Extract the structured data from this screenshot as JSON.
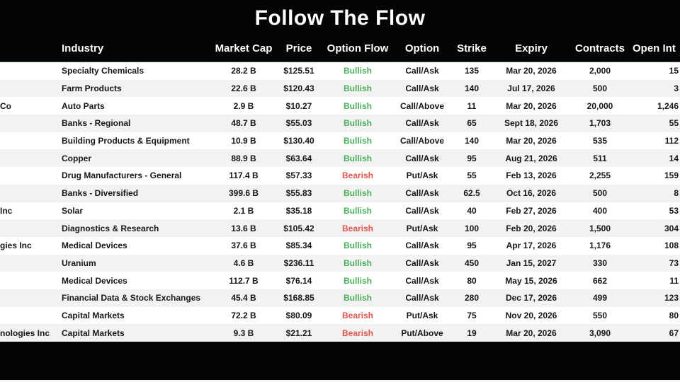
{
  "title": "Follow The Flow",
  "colors": {
    "background": "#050505",
    "header_text": "#ffffff",
    "body_text": "#161616",
    "row_white": "#ffffff",
    "row_gray": "#f2f2f2",
    "bullish_green": "#4aad5b",
    "bearish_red": "#e4544b",
    "divider_green": "#3f5a3f",
    "bottom_strip": "#f5f5f5"
  },
  "table": {
    "columns": [
      "Industry",
      "Market Cap",
      "Price",
      "Option Flow",
      "Option",
      "Strike",
      "Expiry",
      "Contracts",
      "Open Int"
    ],
    "rows": [
      {
        "company_fragment": "",
        "industry": "Specialty Chemicals",
        "market_cap": "28.2 B",
        "price": "$125.51",
        "option_flow": "Bullish",
        "option": "Call/Ask",
        "strike": "135",
        "expiry": "Mar 20, 2026",
        "contracts": "2,000",
        "open_int": "15"
      },
      {
        "company_fragment": "",
        "industry": "Farm Products",
        "market_cap": "22.6 B",
        "price": "$120.43",
        "option_flow": "Bullish",
        "option": "Call/Ask",
        "strike": "140",
        "expiry": "Jul 17, 2026",
        "contracts": "500",
        "open_int": "3"
      },
      {
        "company_fragment": "Co",
        "industry": "Auto Parts",
        "market_cap": "2.9 B",
        "price": "$10.27",
        "option_flow": "Bullish",
        "option": "Call/Above",
        "strike": "11",
        "expiry": "Mar 20, 2026",
        "contracts": "20,000",
        "open_int": "1,246"
      },
      {
        "company_fragment": "",
        "industry": "Banks - Regional",
        "market_cap": "48.7 B",
        "price": "$55.03",
        "option_flow": "Bullish",
        "option": "Call/Ask",
        "strike": "65",
        "expiry": "Sept 18, 2026",
        "contracts": "1,703",
        "open_int": "55"
      },
      {
        "company_fragment": "",
        "industry": "Building Products & Equipment",
        "market_cap": "10.9 B",
        "price": "$130.40",
        "option_flow": "Bullish",
        "option": "Call/Above",
        "strike": "140",
        "expiry": "Mar 20, 2026",
        "contracts": "535",
        "open_int": "112"
      },
      {
        "company_fragment": "",
        "industry": "Copper",
        "market_cap": "88.9 B",
        "price": "$63.64",
        "option_flow": "Bullish",
        "option": "Call/Ask",
        "strike": "95",
        "expiry": "Aug 21, 2026",
        "contracts": "511",
        "open_int": "14"
      },
      {
        "company_fragment": "",
        "industry": "Drug Manufacturers - General",
        "market_cap": "117.4 B",
        "price": "$57.33",
        "option_flow": "Bearish",
        "option": "Put/Ask",
        "strike": "55",
        "expiry": "Feb 13, 2026",
        "contracts": "2,255",
        "open_int": "159"
      },
      {
        "company_fragment": "",
        "industry": "Banks - Diversified",
        "market_cap": "399.6 B",
        "price": "$55.83",
        "option_flow": "Bullish",
        "option": "Call/Ask",
        "strike": "62.5",
        "expiry": "Oct 16, 2026",
        "contracts": "500",
        "open_int": "8"
      },
      {
        "company_fragment": "Inc",
        "industry": "Solar",
        "market_cap": "2.1 B",
        "price": "$35.18",
        "option_flow": "Bullish",
        "option": "Call/Ask",
        "strike": "40",
        "expiry": "Feb 27, 2026",
        "contracts": "400",
        "open_int": "53"
      },
      {
        "company_fragment": "",
        "industry": "Diagnostics & Research",
        "market_cap": "13.6 B",
        "price": "$105.42",
        "option_flow": "Bearish",
        "option": "Put/Ask",
        "strike": "100",
        "expiry": "Feb 20, 2026",
        "contracts": "1,500",
        "open_int": "304"
      },
      {
        "company_fragment": "gies Inc",
        "industry": "Medical Devices",
        "market_cap": "37.6 B",
        "price": "$85.34",
        "option_flow": "Bullish",
        "option": "Call/Ask",
        "strike": "95",
        "expiry": "Apr 17, 2026",
        "contracts": "1,176",
        "open_int": "108"
      },
      {
        "company_fragment": "",
        "industry": "Uranium",
        "market_cap": "4.6 B",
        "price": "$236.11",
        "option_flow": "Bullish",
        "option": "Call/Ask",
        "strike": "450",
        "expiry": "Jan 15, 2027",
        "contracts": "330",
        "open_int": "73"
      },
      {
        "company_fragment": "",
        "industry": "Medical Devices",
        "market_cap": "112.7 B",
        "price": "$76.14",
        "option_flow": "Bullish",
        "option": "Call/Ask",
        "strike": "80",
        "expiry": "May 15, 2026",
        "contracts": "662",
        "open_int": "11"
      },
      {
        "company_fragment": "",
        "industry": "Financial Data & Stock Exchanges",
        "market_cap": "45.4 B",
        "price": "$168.85",
        "option_flow": "Bullish",
        "option": "Call/Ask",
        "strike": "280",
        "expiry": "Dec 17, 2026",
        "contracts": "499",
        "open_int": "123"
      },
      {
        "company_fragment": "",
        "industry": "Capital Markets",
        "market_cap": "72.2 B",
        "price": "$80.09",
        "option_flow": "Bearish",
        "option": "Put/Ask",
        "strike": "75",
        "expiry": "Nov 20, 2026",
        "contracts": "550",
        "open_int": "80"
      },
      {
        "company_fragment": "nologies Inc",
        "industry": "Capital Markets",
        "market_cap": "9.3 B",
        "price": "$21.21",
        "option_flow": "Bearish",
        "option": "Put/Above",
        "strike": "19",
        "expiry": "Mar 20, 2026",
        "contracts": "3,090",
        "open_int": "67"
      }
    ]
  }
}
